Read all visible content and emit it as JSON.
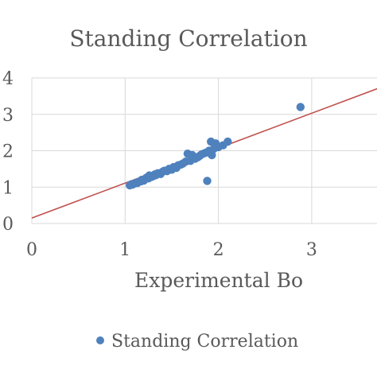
{
  "chart_data": {
    "type": "scatter",
    "title": "Standing Correlation",
    "xlabel": "Experimental Bo",
    "ylabel": "",
    "xlim": [
      0,
      3.7
    ],
    "ylim": [
      0,
      4
    ],
    "x_ticks": [
      "0",
      "1",
      "2",
      "3"
    ],
    "y_ticks": [
      "0",
      "1",
      "2",
      "3",
      "4"
    ],
    "grid": true,
    "legend_position": "bottom",
    "colors": {
      "points": "#4f81bd",
      "trendline": "#c0504d",
      "grid": "#d9d9d9",
      "text": "#595959"
    },
    "series": [
      {
        "name": "Standing Correlation",
        "points": [
          [
            1.05,
            1.05
          ],
          [
            1.07,
            1.08
          ],
          [
            1.08,
            1.07
          ],
          [
            1.1,
            1.1
          ],
          [
            1.12,
            1.12
          ],
          [
            1.13,
            1.11
          ],
          [
            1.15,
            1.15
          ],
          [
            1.17,
            1.16
          ],
          [
            1.18,
            1.2
          ],
          [
            1.2,
            1.18
          ],
          [
            1.21,
            1.22
          ],
          [
            1.23,
            1.26
          ],
          [
            1.25,
            1.24
          ],
          [
            1.26,
            1.32
          ],
          [
            1.28,
            1.28
          ],
          [
            1.3,
            1.3
          ],
          [
            1.32,
            1.35
          ],
          [
            1.33,
            1.33
          ],
          [
            1.35,
            1.38
          ],
          [
            1.38,
            1.36
          ],
          [
            1.4,
            1.42
          ],
          [
            1.42,
            1.45
          ],
          [
            1.45,
            1.44
          ],
          [
            1.47,
            1.5
          ],
          [
            1.5,
            1.48
          ],
          [
            1.52,
            1.55
          ],
          [
            1.55,
            1.53
          ],
          [
            1.57,
            1.6
          ],
          [
            1.6,
            1.62
          ],
          [
            1.62,
            1.65
          ],
          [
            1.65,
            1.7
          ],
          [
            1.67,
            1.92
          ],
          [
            1.7,
            1.72
          ],
          [
            1.72,
            1.88
          ],
          [
            1.75,
            1.78
          ],
          [
            1.78,
            1.82
          ],
          [
            1.8,
            1.86
          ],
          [
            1.82,
            1.9
          ],
          [
            1.85,
            1.93
          ],
          [
            1.87,
            1.95
          ],
          [
            1.88,
            1.17
          ],
          [
            1.9,
            2.0
          ],
          [
            1.92,
            2.25
          ],
          [
            1.93,
            1.88
          ],
          [
            1.95,
            2.05
          ],
          [
            1.97,
            2.2
          ],
          [
            2.0,
            2.1
          ],
          [
            2.05,
            2.15
          ],
          [
            2.1,
            2.25
          ],
          [
            2.88,
            3.2
          ]
        ]
      }
    ],
    "trendline": {
      "intercept": 0.15,
      "slope": 0.96
    }
  }
}
